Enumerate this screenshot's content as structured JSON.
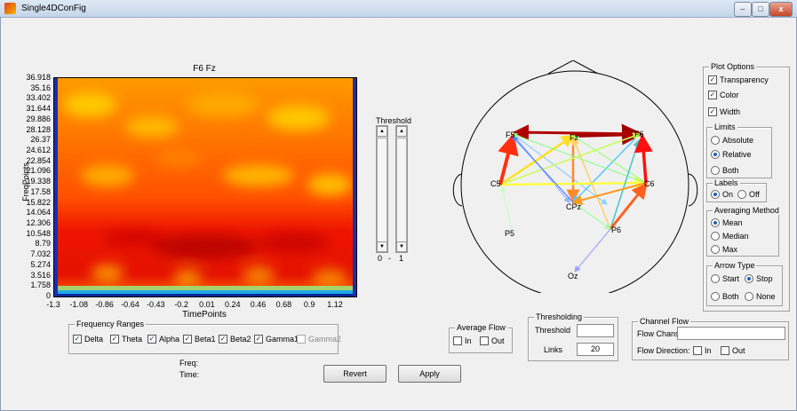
{
  "window": {
    "title": "Single4DConFig",
    "controls": [
      "–",
      "□",
      "x"
    ]
  },
  "plot": {
    "title": "F6 Fz",
    "y_label": "FreqPoints",
    "x_label": "TimePoints",
    "y_ticks": [
      "36.918",
      "35.16",
      "33.402",
      "31.644",
      "29.886",
      "28.128",
      "26.37",
      "24.612",
      "22.854",
      "21.096",
      "19.338",
      "17.58",
      "15.822",
      "14.064",
      "12.306",
      "10.548",
      "8.79",
      "7.032",
      "5.274",
      "3.516",
      "1.758",
      "0"
    ],
    "x_ticks": [
      "-1.3",
      "-1.08",
      "-0.86",
      "-0.64",
      "-0.43",
      "-0.2",
      "0.01",
      "0.24",
      "0.46",
      "0.68",
      "0.9",
      "1.12"
    ]
  },
  "threshold_slider": {
    "label": "Threshold",
    "min_label": "0",
    "sep": "-",
    "max_label": "1"
  },
  "frequency_ranges": {
    "title": "Frequency Ranges",
    "items": [
      {
        "label": "Delta",
        "checked": true
      },
      {
        "label": "Theta",
        "checked": true
      },
      {
        "label": "Alpha",
        "checked": true
      },
      {
        "label": "Beta1",
        "checked": true
      },
      {
        "label": "Beta2",
        "checked": true
      },
      {
        "label": "Gamma1",
        "checked": true
      },
      {
        "label": "Gamma2",
        "checked": false
      }
    ]
  },
  "readouts": {
    "freq_label": "Freq:",
    "time_label": "Time:"
  },
  "buttons": {
    "revert": "Revert",
    "apply": "Apply"
  },
  "average_flow": {
    "title": "Average Flow",
    "in_label": "In",
    "out_label": "Out"
  },
  "thresholding": {
    "title": "Thresholding",
    "threshold_label": "Threshold",
    "threshold_value": "",
    "links_label": "Links",
    "links_value": "20"
  },
  "channel_flow": {
    "title": "Channel Flow",
    "chans_label": "Flow Chans:",
    "chans_value": "",
    "direction_label": "Flow Direction:",
    "in_label": "In",
    "out_label": "Out"
  },
  "head": {
    "electrodes": [
      {
        "label": "F5"
      },
      {
        "label": "Fz"
      },
      {
        "label": "F6"
      },
      {
        "label": "C5"
      },
      {
        "label": "C6"
      },
      {
        "label": "CPz"
      },
      {
        "label": "P5"
      },
      {
        "label": "P6"
      },
      {
        "label": "Oz"
      }
    ]
  },
  "plot_options": {
    "title": "Plot Options",
    "transparency": "Transparency",
    "color": "Color",
    "width": "Width",
    "limits": {
      "title": "Limits",
      "absolute": "Absolute",
      "relative": "Relative",
      "both": "Both",
      "selected": "Relative"
    },
    "labels": {
      "title": "Labels",
      "on": "On",
      "off": "Off",
      "selected": "On"
    },
    "averaging": {
      "title": "Averaging Method",
      "mean": "Mean",
      "median": "Median",
      "max": "Max",
      "selected": "Mean"
    },
    "arrow_type": {
      "title": "Arrow Type",
      "start": "Start",
      "stop": "Stop",
      "both": "Both",
      "none": "None",
      "selected": "Stop"
    }
  }
}
